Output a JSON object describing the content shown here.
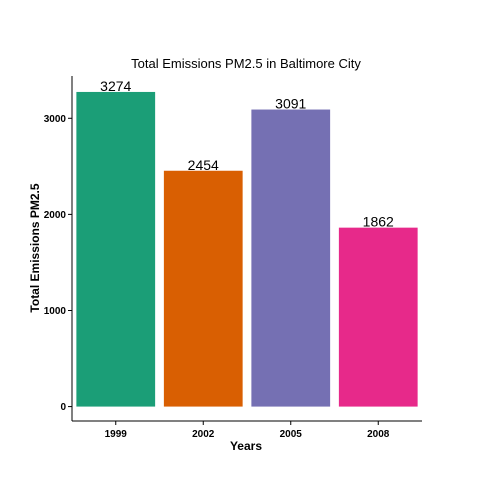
{
  "chart_data": {
    "type": "bar",
    "title": "Total Emissions PM2.5 in Baltimore City",
    "xlabel": "Years",
    "ylabel": "Total Emissions PM2.5",
    "categories": [
      "1999",
      "2002",
      "2005",
      "2008"
    ],
    "values": [
      3274,
      2454,
      3091,
      1862
    ],
    "data_labels": [
      "3274",
      "2454",
      "3091",
      "1862"
    ],
    "colors": [
      "#1b9e77",
      "#d95f02",
      "#7570b3",
      "#e7298a"
    ],
    "ylim": [
      -150,
      3440
    ],
    "yticks": [
      0,
      1000,
      2000,
      3000
    ],
    "ytick_labels": [
      "0",
      "1000",
      "2000",
      "3000"
    ],
    "grid": false,
    "legend": "none"
  }
}
